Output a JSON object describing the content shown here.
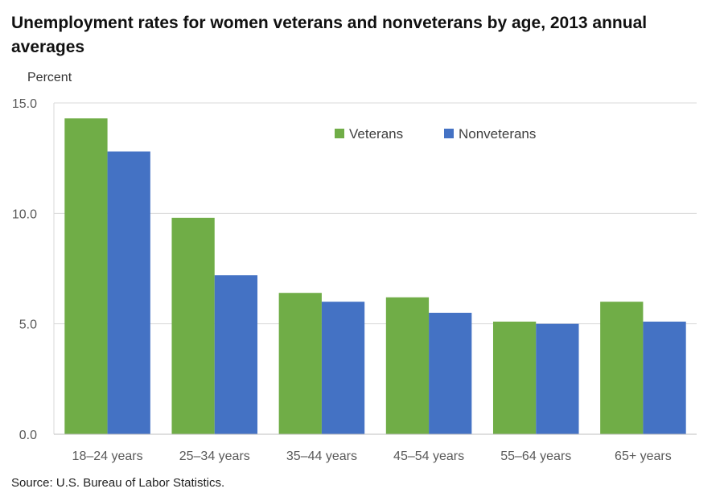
{
  "title": "Unemployment rates for women veterans and nonveterans by age, 2013 annual averages",
  "source": "Source: U.S. Bureau of Labor Statistics.",
  "chart_data": {
    "type": "bar",
    "title": "Unemployment rates for women veterans and nonveterans by age, 2013 annual averages",
    "ylabel": "Percent",
    "xlabel": "",
    "categories": [
      "18–24 years",
      "25–34 years",
      "35–44 years",
      "45–54 years",
      "55–64 years",
      "65+ years"
    ],
    "series": [
      {
        "name": "Veterans",
        "color": "#70ad47",
        "values": [
          14.3,
          9.8,
          6.4,
          6.2,
          5.1,
          6.0
        ]
      },
      {
        "name": "Nonveterans",
        "color": "#4472c4",
        "values": [
          12.8,
          7.2,
          6.0,
          5.5,
          5.0,
          5.1
        ]
      }
    ],
    "ylim": [
      0,
      15
    ],
    "yticks": [
      0,
      5,
      10,
      15
    ],
    "ytick_labels": [
      "0.0",
      "5.0",
      "10.0",
      "15.0"
    ],
    "grid": true,
    "legend_position": "top-right"
  }
}
